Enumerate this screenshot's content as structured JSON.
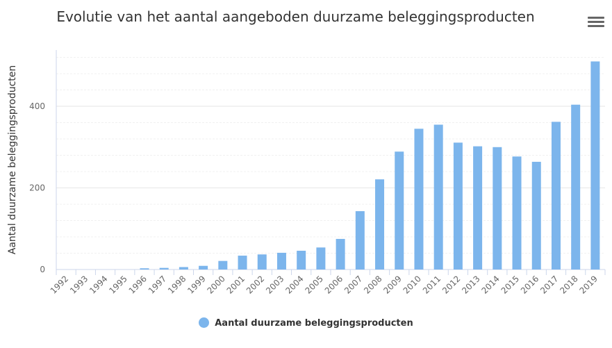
{
  "chart_data": {
    "type": "bar",
    "title": "Evolutie van het aantal aangeboden duurzame beleggingsproducten",
    "xlabel": "",
    "ylabel": "Aantal duurzame beleggingsproducten",
    "ylim": [
      0,
      538
    ],
    "yticks": [
      0,
      200,
      400
    ],
    "grid": true,
    "legend_position": "bottom-center",
    "categories": [
      "1992",
      "1993",
      "1994",
      "1995",
      "1996",
      "1997",
      "1998",
      "1999",
      "2000",
      "2001",
      "2002",
      "2003",
      "2004",
      "2005",
      "2006",
      "2007",
      "2008",
      "2009",
      "2010",
      "2011",
      "2012",
      "2013",
      "2014",
      "2015",
      "2016",
      "2017",
      "2018",
      "2019"
    ],
    "series": [
      {
        "name": "Aantal duurzame beleggingsproducten",
        "color": "#7cb5ec",
        "values": [
          0,
          0,
          0,
          0,
          3,
          4,
          6,
          9,
          21,
          34,
          37,
          41,
          46,
          54,
          75,
          143,
          221,
          289,
          345,
          355,
          311,
          302,
          300,
          277,
          264,
          362,
          404,
          510
        ]
      }
    ]
  },
  "menu_icon": "hamburger-menu-icon"
}
